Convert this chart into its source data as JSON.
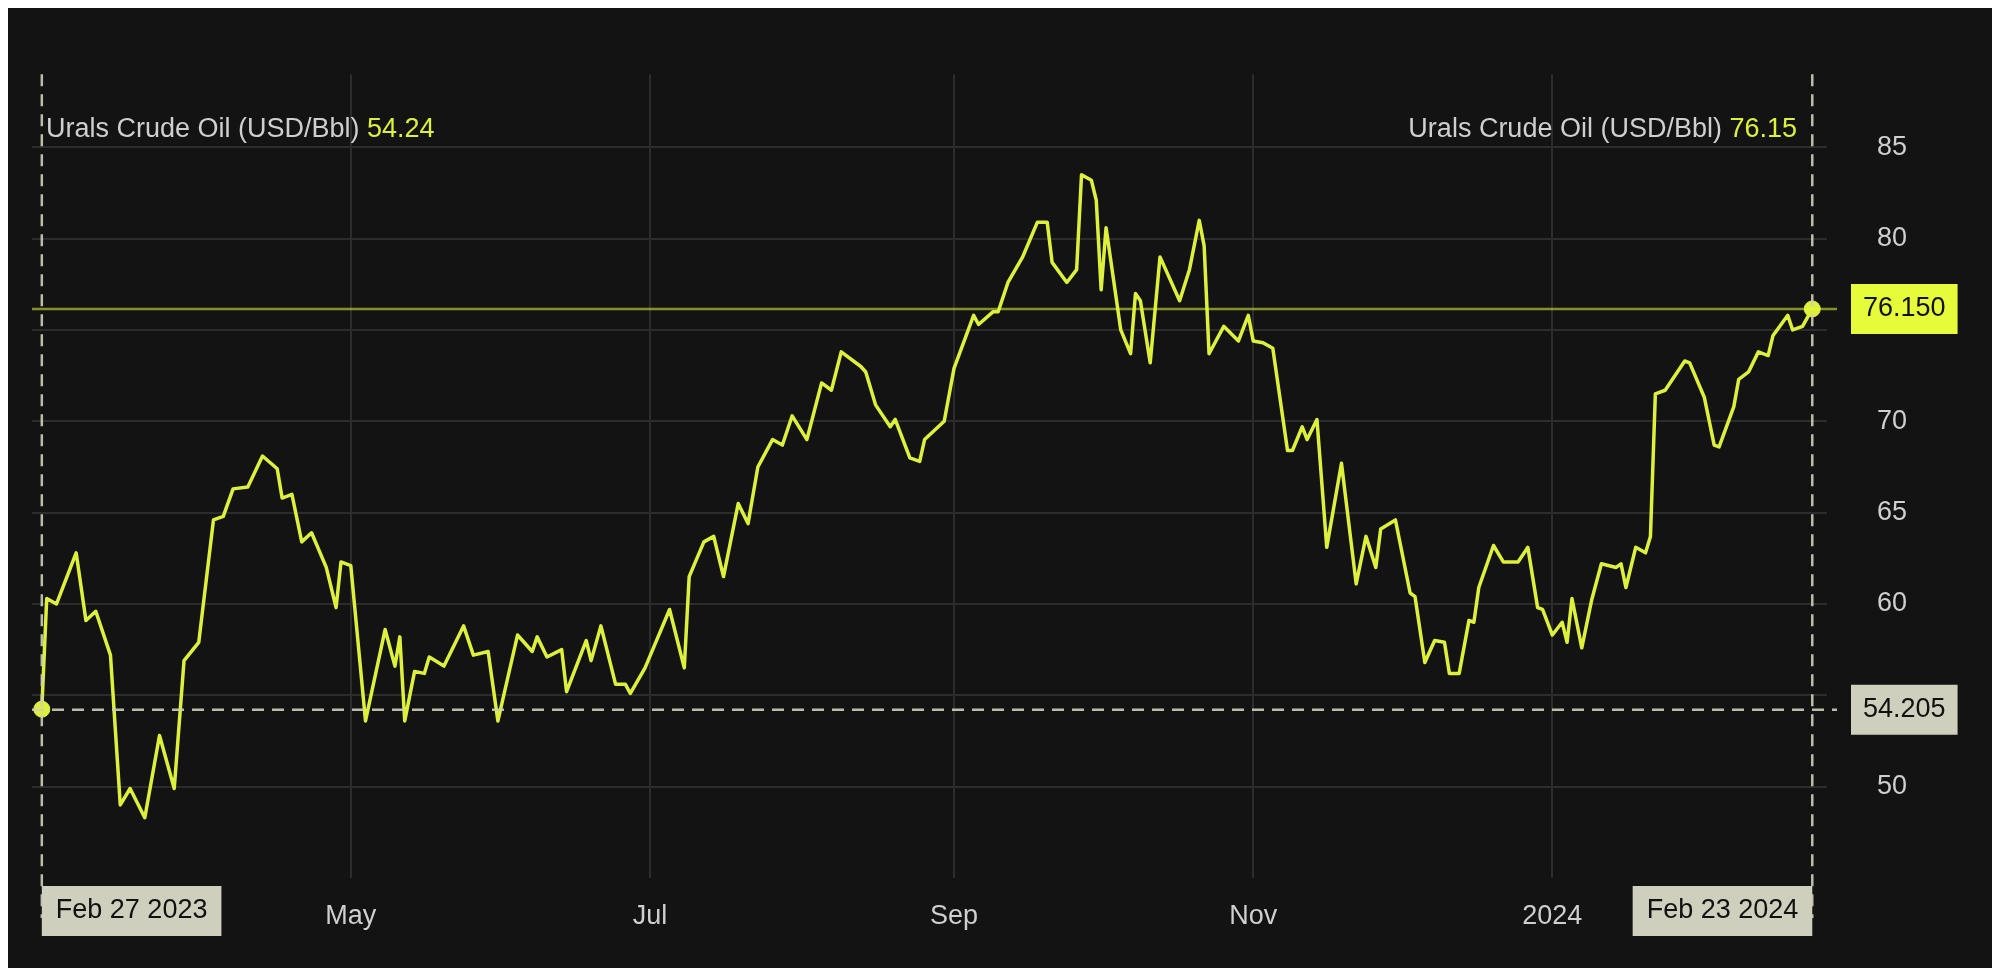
{
  "chart_data": {
    "type": "line",
    "annotations": [
      "Urals Crude Oil (USD/Bbl) 54.24",
      "Urals Crude Oil (USD/Bbl) 76.15"
    ],
    "xlim": [
      "2023-02-25",
      "2024-02-26"
    ],
    "xticks": [
      {
        "value": "2023-05-01",
        "label": "May"
      },
      {
        "value": "2023-07-01",
        "label": "Jul"
      },
      {
        "value": "2023-09-01",
        "label": "Sep"
      },
      {
        "value": "2023-11-01",
        "label": "Nov"
      },
      {
        "value": "2024-01-01",
        "label": "2024"
      }
    ],
    "ylim": [
      45,
      89
    ],
    "yticks": [
      50,
      {
        "value": 55,
        "label": null
      },
      60,
      65,
      70,
      {
        "value": 75,
        "label": null
      },
      80,
      85
    ],
    "grid": true,
    "legend": false,
    "line_style": "solid",
    "x": [
      "2023-02-27",
      "2023-02-28",
      "2023-03-02",
      "2023-03-06",
      "2023-03-08",
      "2023-03-10",
      "2023-03-13",
      "2023-03-15",
      "2023-03-17",
      "2023-03-20",
      "2023-03-23",
      "2023-03-26",
      "2023-03-28",
      "2023-03-31",
      "2023-04-03",
      "2023-04-05",
      "2023-04-07",
      "2023-04-10",
      "2023-04-13",
      "2023-04-16",
      "2023-04-17",
      "2023-04-19",
      "2023-04-21",
      "2023-04-23",
      "2023-04-26",
      "2023-04-28",
      "2023-04-29",
      "2023-05-01",
      "2023-05-04",
      "2023-05-08",
      "2023-05-10",
      "2023-05-11",
      "2023-05-12",
      "2023-05-14",
      "2023-05-16",
      "2023-05-17",
      "2023-05-20",
      "2023-05-24",
      "2023-05-26",
      "2023-05-29",
      "2023-05-31",
      "2023-06-04",
      "2023-06-07",
      "2023-06-08",
      "2023-06-10",
      "2023-06-13",
      "2023-06-14",
      "2023-06-18",
      "2023-06-19",
      "2023-06-21",
      "2023-06-24",
      "2023-06-26",
      "2023-06-27",
      "2023-06-30",
      "2023-07-05",
      "2023-07-08",
      "2023-07-09",
      "2023-07-12",
      "2023-07-14",
      "2023-07-16",
      "2023-07-19",
      "2023-07-21",
      "2023-07-23",
      "2023-07-26",
      "2023-07-28",
      "2023-07-30",
      "2023-08-02",
      "2023-08-05",
      "2023-08-07",
      "2023-08-09",
      "2023-08-13",
      "2023-08-14",
      "2023-08-16",
      "2023-08-19",
      "2023-08-20",
      "2023-08-23",
      "2023-08-25",
      "2023-08-26",
      "2023-08-30",
      "2023-09-01",
      "2023-09-05",
      "2023-09-06",
      "2023-09-09",
      "2023-09-10",
      "2023-09-12",
      "2023-09-15",
      "2023-09-18",
      "2023-09-20",
      "2023-09-21",
      "2023-09-24",
      "2023-09-26",
      "2023-09-27",
      "2023-09-29",
      "2023-09-30",
      "2023-10-01",
      "2023-10-02",
      "2023-10-05",
      "2023-10-07",
      "2023-10-08",
      "2023-10-09",
      "2023-10-11",
      "2023-10-13",
      "2023-10-17",
      "2023-10-19",
      "2023-10-21",
      "2023-10-22",
      "2023-10-23",
      "2023-10-26",
      "2023-10-29",
      "2023-10-31",
      "2023-11-01",
      "2023-11-03",
      "2023-11-05",
      "2023-11-08",
      "2023-11-09",
      "2023-11-11",
      "2023-11-12",
      "2023-11-14",
      "2023-11-16",
      "2023-11-19",
      "2023-11-22",
      "2023-11-24",
      "2023-11-26",
      "2023-11-27",
      "2023-11-30",
      "2023-12-03",
      "2023-12-04",
      "2023-12-06",
      "2023-12-08",
      "2023-12-10",
      "2023-12-11",
      "2023-12-13",
      "2023-12-15",
      "2023-12-16",
      "2023-12-17",
      "2023-12-20",
      "2023-12-22",
      "2023-12-25",
      "2023-12-27",
      "2023-12-29",
      "2023-12-30",
      "2024-01-01",
      "2024-01-03",
      "2024-01-04",
      "2024-01-05",
      "2024-01-07",
      "2024-01-09",
      "2024-01-11",
      "2024-01-14",
      "2024-01-15",
      "2024-01-16",
      "2024-01-18",
      "2024-01-20",
      "2024-01-21",
      "2024-01-22",
      "2024-01-24",
      "2024-01-28",
      "2024-01-29",
      "2024-02-01",
      "2024-02-03",
      "2024-02-04",
      "2024-02-07",
      "2024-02-08",
      "2024-02-10",
      "2024-02-12",
      "2024-02-14",
      "2024-02-15",
      "2024-02-18",
      "2024-02-19",
      "2024-02-21",
      "2024-02-23"
    ],
    "series": [
      {
        "color": "#dcf03c",
        "marker": "none",
        "values": [
          54.24,
          60.3,
          60,
          62.8,
          59.1,
          59.6,
          57.2,
          49,
          49.9,
          48.3,
          52.8,
          49.9,
          56.9,
          57.9,
          64.6,
          64.8,
          66.3,
          66.4,
          68.1,
          67.4,
          65.8,
          66,
          63.4,
          63.9,
          62,
          59.8,
          62.3,
          62.1,
          53.6,
          58.6,
          56.6,
          58.2,
          53.6,
          56.3,
          56.2,
          57.1,
          56.6,
          58.8,
          57.2,
          57.4,
          53.6,
          58.3,
          57.4,
          58.2,
          57.1,
          57.5,
          55.2,
          58,
          56.9,
          58.8,
          55.6,
          55.6,
          55.1,
          56.5,
          59.7,
          56.5,
          61.5,
          63.4,
          63.7,
          61.5,
          65.5,
          64.4,
          67.5,
          69,
          68.7,
          70.3,
          69,
          72.1,
          71.7,
          73.8,
          73,
          72.7,
          70.9,
          69.7,
          70.1,
          68,
          67.8,
          69,
          70,
          72.9,
          75.8,
          75.3,
          76,
          76,
          77.6,
          79,
          80.9,
          80.9,
          78.7,
          77.6,
          78.3,
          83.5,
          83.2,
          82.1,
          77.2,
          80.6,
          75,
          73.7,
          77,
          76.6,
          73.2,
          79,
          76.6,
          78.3,
          81,
          79.6,
          73.7,
          75.2,
          74.4,
          75.8,
          74.4,
          74.3,
          74,
          68.4,
          68.4,
          69.7,
          69,
          70.1,
          63.1,
          67.7,
          61.1,
          63.7,
          62,
          64.1,
          64.6,
          60.6,
          60.4,
          56.8,
          58,
          57.9,
          56.2,
          56.2,
          59.1,
          59,
          60.9,
          63.2,
          62.3,
          62.3,
          63.1,
          59.8,
          59.7,
          58.3,
          59,
          57.9,
          60.3,
          57.6,
          60.2,
          62.2,
          62,
          62.2,
          60.9,
          63.1,
          62.8,
          63.7,
          71.5,
          71.7,
          73.3,
          73.2,
          71.3,
          68.7,
          68.6,
          70.8,
          72.3,
          72.7,
          73.8,
          73.6,
          74.7,
          75.8,
          75,
          75.2,
          76.15
        ]
      },
      {
        "type": "scatter",
        "color": "#dcf03c",
        "marker": "circle",
        "x": [
          "2023-02-27",
          "2024-02-23"
        ],
        "values": [
          54.24,
          76.15
        ]
      }
    ],
    "ref_lines": [
      {
        "axis": "y",
        "value": 54.205,
        "label": "54.205",
        "color": "#cfcfbd",
        "line_style": "dashed"
      },
      {
        "axis": "y",
        "value": 76.15,
        "label": "76.150",
        "color": "#e6fb3a",
        "line_style": "solid"
      },
      {
        "axis": "x",
        "value": "2023-02-27",
        "label": "Feb 27 2023",
        "color": "#cfcfbd",
        "line_style": "dashed"
      },
      {
        "axis": "x",
        "value": "2024-02-23",
        "label": "Feb 23 2024",
        "color": "#cfcfbd",
        "line_style": "dashed"
      }
    ]
  }
}
